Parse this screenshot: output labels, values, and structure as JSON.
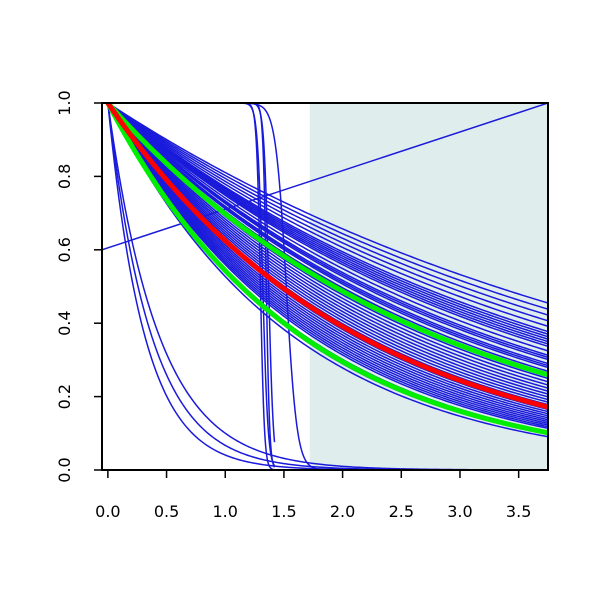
{
  "chart_data": {
    "type": "line",
    "title": "",
    "xlabel": "",
    "ylabel": "",
    "xlim": [
      -0.05,
      3.75
    ],
    "ylim": [
      0,
      1
    ],
    "x_ticks": [
      0.0,
      0.5,
      1.0,
      1.5,
      2.0,
      2.5,
      3.0,
      3.5
    ],
    "x_tick_labels": [
      "0.0",
      "0.5",
      "1.0",
      "1.5",
      "2.0",
      "2.5",
      "3.0",
      "3.5"
    ],
    "y_ticks": [
      0.0,
      0.2,
      0.4,
      0.6,
      0.8,
      1.0
    ],
    "y_tick_labels": [
      "0.0",
      "0.2",
      "0.4",
      "0.6",
      "0.8",
      "1.0"
    ],
    "grid": false,
    "legend": "none",
    "shaded_region": {
      "x_start": 1.72,
      "x_end": 3.75,
      "color": "#e0eded"
    },
    "colors": {
      "blue": "#1a1adb",
      "green": "#00ee00",
      "red": "#ff0000",
      "axis": "#000000"
    },
    "blue_exp_rates": [
      0.21,
      0.22,
      0.23,
      0.24,
      0.25,
      0.26,
      0.265,
      0.27,
      0.275,
      0.28,
      0.285,
      0.29,
      0.3,
      0.31,
      0.315,
      0.32,
      0.33,
      0.335,
      0.34,
      0.35,
      0.36,
      0.37,
      0.38,
      0.39,
      0.4,
      0.41,
      0.42,
      0.43,
      0.44,
      0.45,
      0.46,
      0.47,
      0.48,
      0.49,
      0.5,
      0.51,
      0.52,
      0.53,
      0.54,
      0.55,
      0.56,
      0.57,
      0.58,
      0.6,
      0.62,
      0.64
    ],
    "blue_fast_exp_rates": [
      2.3,
      2.7,
      3.2
    ],
    "blue_step_curves": [
      {
        "center": 1.3,
        "steepness": 60,
        "x_end": 1.42
      },
      {
        "center": 1.32,
        "steepness": 45,
        "x_end": 1.42
      },
      {
        "center": 1.35,
        "steepness": 70,
        "x_end": 1.42
      },
      {
        "center": 1.37,
        "steepness": 50,
        "x_end": 1.42
      },
      {
        "center": 1.52,
        "steepness": 22,
        "x_end": 2.3
      }
    ],
    "blue_rising_line": {
      "x": [
        -0.05,
        3.75
      ],
      "y": [
        0.6,
        1.0
      ]
    },
    "green_series": [
      {
        "name": "",
        "rate": 0.36
      },
      {
        "name": "",
        "rate": 0.61
      }
    ],
    "red_series": {
      "name": "",
      "rate": 0.47
    }
  }
}
